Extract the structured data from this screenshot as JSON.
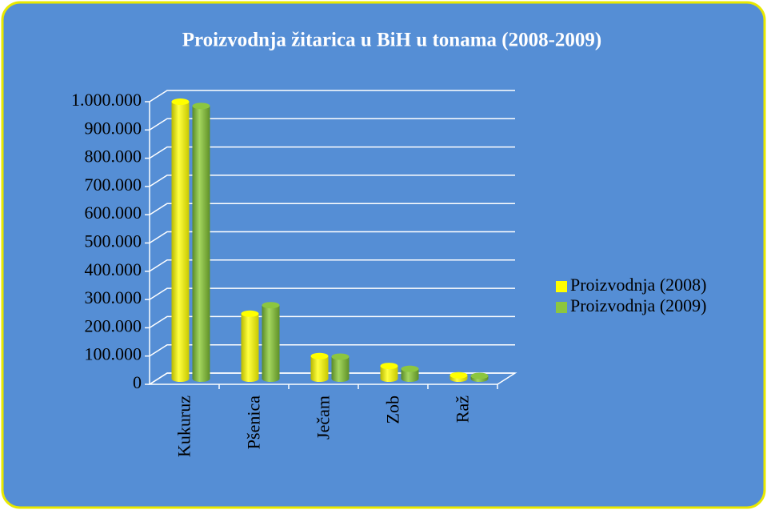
{
  "chart_data": {
    "type": "bar",
    "title": "Proizvodnja žitarica u BiH u tonama (2008-2009)",
    "categories": [
      "Kukuruz",
      "Pšenica",
      "Ječam",
      "Zob",
      "Raž"
    ],
    "series": [
      {
        "name": "Proizvodnja (2008)",
        "color": "#ffff00",
        "values": [
          980000,
          230000,
          80000,
          45000,
          12000
        ]
      },
      {
        "name": "Proizvodnja (2009)",
        "color": "#8cc63f",
        "values": [
          965000,
          260000,
          78000,
          35000,
          10000
        ]
      }
    ],
    "ylim": [
      0,
      1000000
    ],
    "yticks": [
      0,
      {
        "value": 100000,
        "label": "100.000"
      },
      {
        "value": 200000,
        "label": "200.000"
      },
      {
        "value": 300000,
        "label": "300.000"
      },
      {
        "value": 400000,
        "label": "400.000"
      },
      {
        "value": 500000,
        "label": "500.000"
      },
      {
        "value": 600000,
        "label": "600.000"
      },
      {
        "value": 700000,
        "label": "700.000"
      },
      {
        "value": 800000,
        "label": "800.000"
      },
      {
        "value": 900000,
        "label": "900.000"
      },
      {
        "value": 1000000,
        "label": "1.000.000"
      }
    ],
    "grid": true,
    "legend": "right"
  }
}
